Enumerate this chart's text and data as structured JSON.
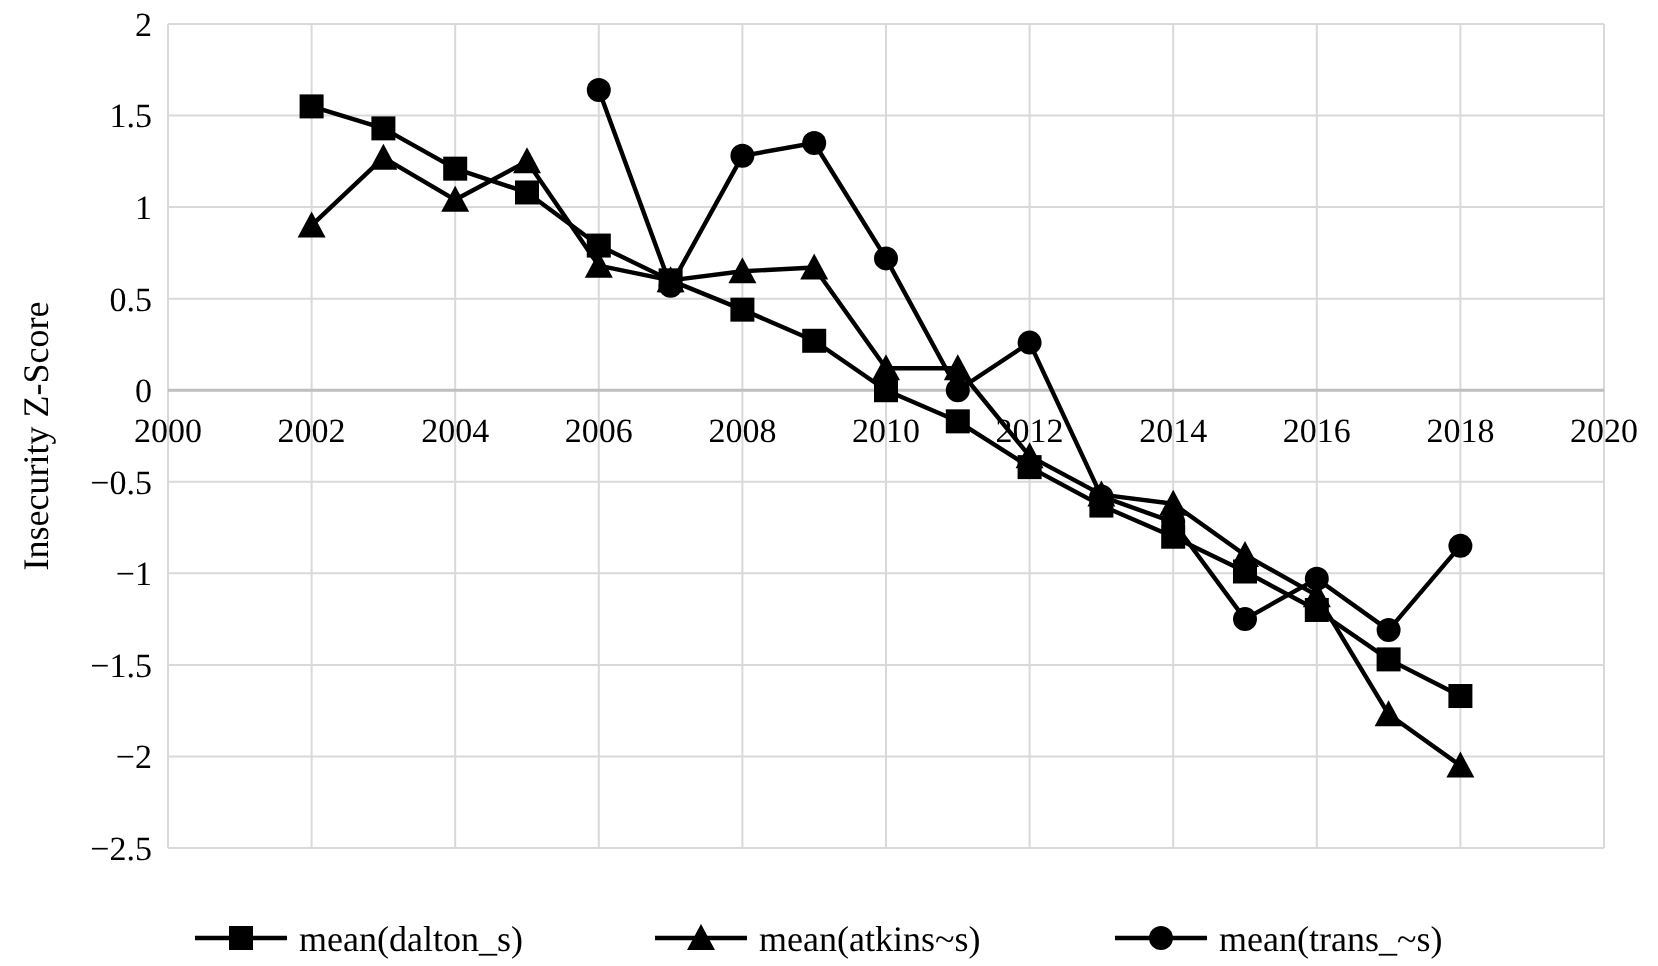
{
  "chart_data": {
    "type": "line",
    "ylabel": "Insecurity Z-Score",
    "x": [
      2002,
      2003,
      2004,
      2005,
      2006,
      2007,
      2008,
      2009,
      2010,
      2011,
      2012,
      2013,
      2014,
      2015,
      2016,
      2017,
      2018
    ],
    "xlim": [
      2000,
      2020
    ],
    "xticks": [
      2000,
      2002,
      2004,
      2006,
      2008,
      2010,
      2012,
      2014,
      2016,
      2018,
      2020
    ],
    "ylim": [
      -2.5,
      2
    ],
    "yticks": [
      -2.5,
      -2,
      -1.5,
      -1,
      -0.5,
      0,
      0.5,
      1,
      1.5,
      2
    ],
    "grid": true,
    "legend": "bottom",
    "line_style": "solid",
    "series": [
      {
        "name": "mean(dalton_s)",
        "color": "#000000",
        "marker": "square",
        "values": [
          1.55,
          1.43,
          1.21,
          1.08,
          0.79,
          0.6,
          0.44,
          0.27,
          0.0,
          -0.17,
          -0.42,
          -0.63,
          -0.8,
          -0.99,
          -1.2,
          -1.47,
          -1.67
        ]
      },
      {
        "name": "mean(atkins~s)",
        "color": "#000000",
        "marker": "triangle",
        "values": [
          0.9,
          1.27,
          1.04,
          1.25,
          0.68,
          0.6,
          0.65,
          0.67,
          0.12,
          0.12,
          -0.36,
          -0.57,
          -0.62,
          -0.9,
          -1.12,
          -1.77,
          -2.05
        ]
      },
      {
        "name": "mean(trans_~s)",
        "color": "#000000",
        "marker": "circle",
        "values": [
          null,
          null,
          null,
          null,
          1.64,
          0.57,
          1.28,
          1.35,
          0.72,
          0.0,
          0.26,
          -0.58,
          -0.72,
          -1.25,
          -1.03,
          -1.31,
          -0.85
        ]
      }
    ]
  }
}
